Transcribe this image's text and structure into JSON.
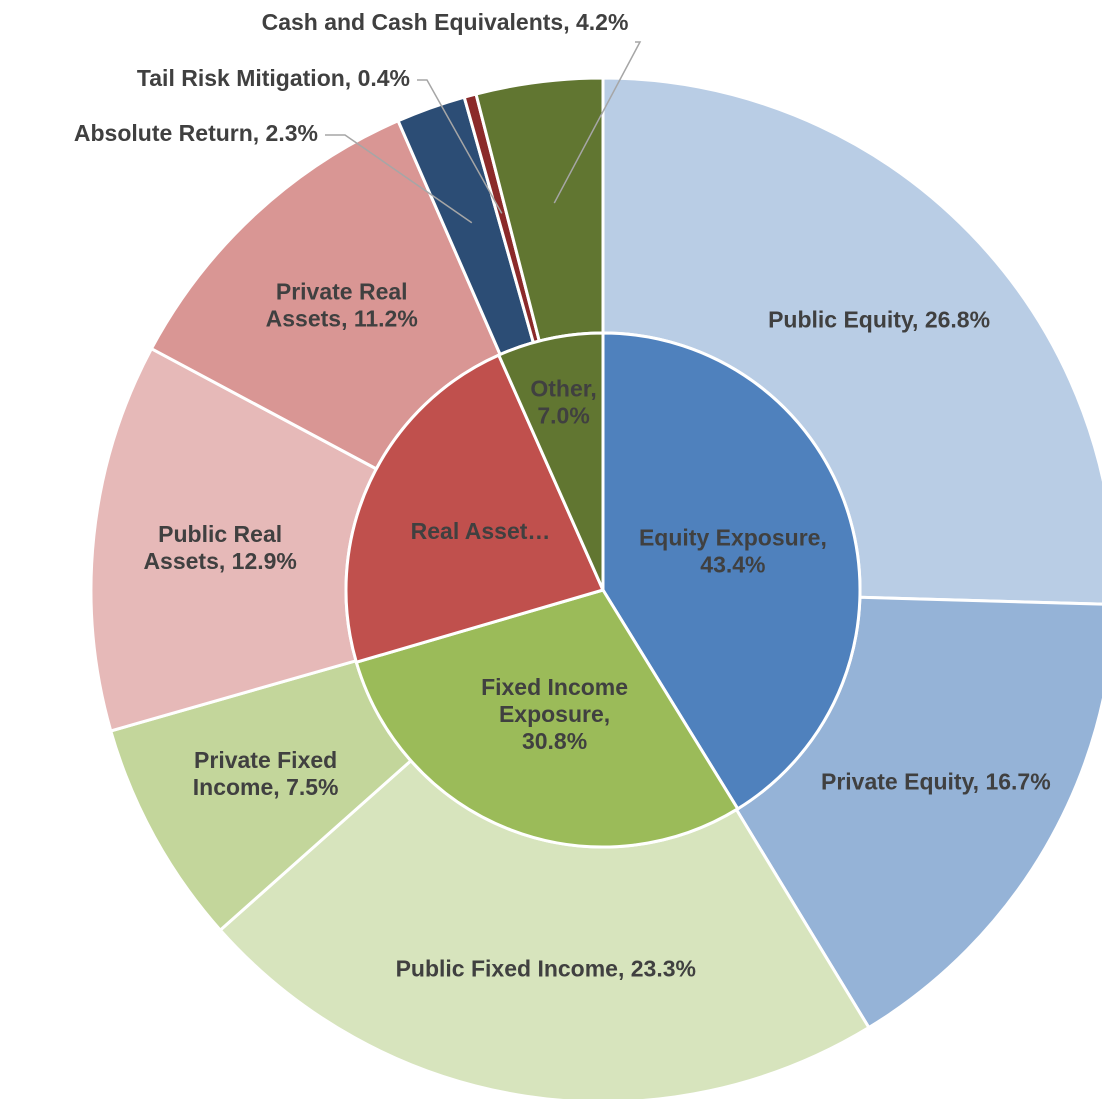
{
  "chart_data": {
    "type": "sunburst",
    "inner": {
      "labels": [
        [
          "Equity Exposure,",
          "43.4%"
        ],
        [
          "Fixed Income",
          "Exposure,",
          "30.8%"
        ],
        [
          "Real Asset…"
        ],
        [
          "Other,",
          "7.0%"
        ]
      ],
      "values": [
        43.4,
        30.8,
        24.1,
        7.0
      ],
      "colors": [
        "#4f81bd",
        "#9bbb59",
        "#c0504d",
        "#617631"
      ]
    },
    "outer": {
      "labels": [
        [
          "Public Equity, 26.8%"
        ],
        [
          "Private Equity, 16.7%"
        ],
        [
          "Public Fixed Income, 23.3%"
        ],
        [
          "Private Fixed",
          "Income, 7.5%"
        ],
        [
          "Public Real",
          "Assets, 12.9%"
        ],
        [
          "Private Real",
          "Assets, 11.2%"
        ],
        [
          "Absolute Return, 2.3%"
        ],
        [
          "Tail Risk Mitigation, 0.4%"
        ],
        [
          "Cash and Cash Equivalents, 4.2%"
        ]
      ],
      "values": [
        26.8,
        16.7,
        23.3,
        7.5,
        12.9,
        11.2,
        2.3,
        0.4,
        4.2
      ],
      "colors": [
        "#b9cde5",
        "#95b3d7",
        "#d7e4bd",
        "#c3d69b",
        "#e6b9b8",
        "#d99694",
        "#2c4d75",
        "#8b2a2a",
        "#617631"
      ]
    }
  }
}
